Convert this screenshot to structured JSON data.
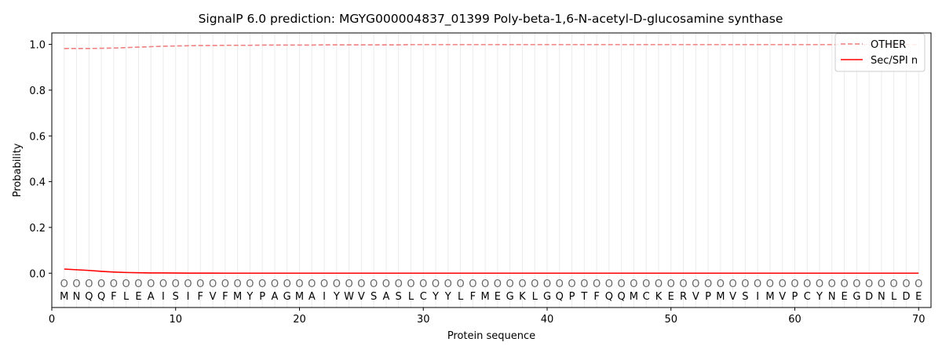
{
  "chart_data": {
    "type": "line",
    "title": "SignalP 6.0 prediction: MGYG000004837_01399 Poly-beta-1,6-N-acetyl-D-glucosamine synthase",
    "xlabel": "Protein sequence",
    "ylabel": "Probability",
    "xlim": [
      0,
      71
    ],
    "ylim": [
      -0.15,
      1.05
    ],
    "xticks": [
      0,
      10,
      20,
      30,
      40,
      50,
      60,
      70
    ],
    "yticks": [
      "0.0",
      "0.2",
      "0.4",
      "0.6",
      "0.8",
      "1.0"
    ],
    "ytick_values": [
      0.0,
      0.2,
      0.4,
      0.6,
      0.8,
      1.0
    ],
    "grid": "vertical lines at each residue",
    "legend_position": "top-right",
    "sequence": "MNQQFLEAISIFVFMYPAGMAIYWVSASLCYYLFMEGKLGQPTFQQMCKERVPMVSIMVPCYNEGDNLDE",
    "predicted_labels": "OOOOOOOOOOOOOOOOOOOOOOOOOOOOOOOOOOOOOOOOOOOOOOOOOOOOOOOOOOOOOOOOOOOOOO",
    "series": [
      {
        "name": "OTHER",
        "color": "#f08080",
        "dash": "dashed",
        "x": [
          1,
          2,
          3,
          4,
          5,
          6,
          7,
          8,
          9,
          10,
          11,
          12,
          13,
          14,
          15,
          16,
          17,
          18,
          19,
          20,
          21,
          22,
          23,
          24,
          25,
          26,
          27,
          28,
          29,
          30,
          31,
          32,
          33,
          34,
          35,
          36,
          37,
          38,
          39,
          40,
          41,
          42,
          43,
          44,
          45,
          46,
          47,
          48,
          49,
          50,
          51,
          52,
          53,
          54,
          55,
          56,
          57,
          58,
          59,
          60,
          61,
          62,
          63,
          64,
          65,
          66,
          67,
          68,
          69,
          70
        ],
        "values": [
          0.982,
          0.982,
          0.982,
          0.983,
          0.984,
          0.986,
          0.988,
          0.99,
          0.992,
          0.993,
          0.994,
          0.995,
          0.995,
          0.996,
          0.996,
          0.996,
          0.997,
          0.997,
          0.997,
          0.997,
          0.997,
          0.998,
          0.998,
          0.998,
          0.998,
          0.998,
          0.998,
          0.998,
          0.999,
          0.999,
          0.999,
          0.999,
          0.999,
          0.999,
          0.999,
          0.999,
          0.999,
          0.999,
          0.999,
          0.999,
          0.999,
          0.999,
          0.999,
          0.999,
          0.999,
          0.999,
          0.999,
          0.999,
          0.999,
          0.999,
          0.999,
          0.999,
          0.999,
          0.999,
          0.999,
          0.999,
          0.999,
          0.999,
          0.999,
          0.999,
          0.999,
          0.999,
          0.999,
          0.999,
          0.999,
          0.999,
          0.999,
          0.999,
          0.999,
          0.999
        ]
      },
      {
        "name": "Sec/SPI n",
        "color": "#ff0000",
        "dash": "solid",
        "x": [
          1,
          2,
          3,
          4,
          5,
          6,
          7,
          8,
          9,
          10,
          11,
          12,
          13,
          14,
          15,
          16,
          17,
          18,
          19,
          20,
          21,
          22,
          23,
          24,
          25,
          26,
          27,
          28,
          29,
          30,
          31,
          32,
          33,
          34,
          35,
          36,
          37,
          38,
          39,
          40,
          41,
          42,
          43,
          44,
          45,
          46,
          47,
          48,
          49,
          50,
          51,
          52,
          53,
          54,
          55,
          56,
          57,
          58,
          59,
          60,
          61,
          62,
          63,
          64,
          65,
          66,
          67,
          68,
          69,
          70
        ],
        "values": [
          0.018,
          0.015,
          0.012,
          0.008,
          0.005,
          0.003,
          0.002,
          0.001,
          0.001,
          0.0005,
          0.0003,
          0.0002,
          0.0001,
          0,
          0,
          0,
          0,
          0,
          0,
          0,
          0,
          0,
          0,
          0,
          0,
          0,
          0,
          0,
          0,
          0,
          0,
          0,
          0,
          0,
          0,
          0,
          0,
          0,
          0,
          0,
          0,
          0,
          0,
          0,
          0,
          0,
          0,
          0,
          0,
          0,
          0,
          0,
          0,
          0,
          0,
          0,
          0,
          0,
          0,
          0,
          0,
          0,
          0,
          0,
          0,
          0,
          0,
          0,
          0,
          0
        ]
      }
    ]
  }
}
